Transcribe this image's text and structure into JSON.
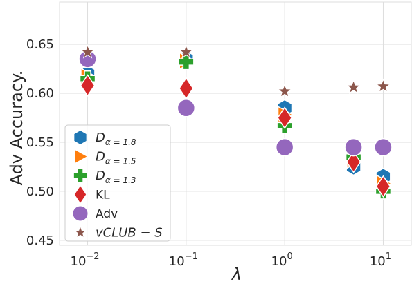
{
  "chart_data": {
    "type": "scatter",
    "xlabel": "λ",
    "ylabel": "Adv Accuracy.",
    "x_scale": "log",
    "x_ticks": [
      {
        "value": 0.01,
        "base": "10",
        "exp": "−2"
      },
      {
        "value": 0.1,
        "base": "10",
        "exp": "−1"
      },
      {
        "value": 1,
        "base": "10",
        "exp": "0"
      },
      {
        "value": 10,
        "base": "10",
        "exp": "1"
      }
    ],
    "y_ticks": [
      "0.45",
      "0.50",
      "0.55",
      "0.60",
      "0.65"
    ],
    "ylim": [
      0.445,
      0.693
    ],
    "grid": true,
    "legend_position": "lower-left",
    "x": [
      0.01,
      0.1,
      1,
      5,
      10
    ],
    "series": [
      {
        "name": "Dα=1.8",
        "label_main": "D",
        "label_sub": "α = 1.8",
        "marker": "hexagon",
        "color": "#1f77b4",
        "values": [
          0.62,
          0.635,
          0.585,
          0.525,
          0.515
        ]
      },
      {
        "name": "Dα=1.5",
        "label_main": "D",
        "label_sub": "α = 1.5",
        "marker": "triangle-right",
        "color": "#ff7f0e",
        "values": [
          0.617,
          0.633,
          0.578,
          0.532,
          0.508
        ]
      },
      {
        "name": "Dα=1.3",
        "label_main": "D",
        "label_sub": "α = 1.3",
        "marker": "plus",
        "color": "#2ca02c",
        "values": [
          0.615,
          0.632,
          0.567,
          0.535,
          0.5
        ]
      },
      {
        "name": "KL",
        "label_main": "KL",
        "label_sub": "",
        "marker": "thin-diamond",
        "color": "#d62728",
        "values": [
          0.608,
          0.605,
          0.575,
          0.53,
          0.505
        ]
      },
      {
        "name": "Adv",
        "label_main": "Adv",
        "label_sub": "",
        "marker": "circle",
        "color": "#9467bd",
        "values": [
          0.635,
          0.585,
          0.545,
          0.545,
          0.545
        ]
      },
      {
        "name": "vCLUB − S",
        "label_main": "vCLUB − S",
        "label_sub": "",
        "marker": "star",
        "color": "#8c564b",
        "values": [
          0.642,
          0.642,
          0.602,
          0.606,
          0.607
        ]
      }
    ]
  }
}
